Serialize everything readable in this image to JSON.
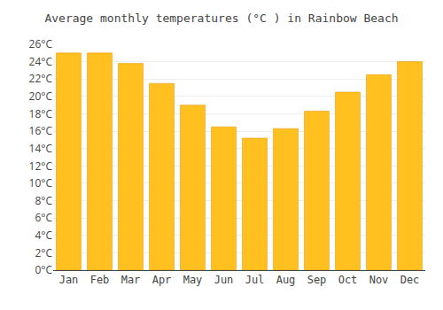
{
  "chart_data": {
    "type": "bar",
    "title": "Average monthly temperatures (°C ) in Rainbow Beach",
    "categories": [
      "Jan",
      "Feb",
      "Mar",
      "Apr",
      "May",
      "Jun",
      "Jul",
      "Aug",
      "Sep",
      "Oct",
      "Nov",
      "Dec"
    ],
    "values": [
      25.0,
      25.0,
      23.8,
      21.5,
      19.0,
      16.5,
      15.2,
      16.3,
      18.3,
      20.5,
      22.5,
      24.0
    ],
    "color": "#FFC020",
    "ylim": [
      0,
      26
    ],
    "yticks": [
      {
        "value": 0,
        "label": "0°C"
      },
      {
        "value": 2,
        "label": "2°C"
      },
      {
        "value": 4,
        "label": "4°C"
      },
      {
        "value": 6,
        "label": "6°C"
      },
      {
        "value": 8,
        "label": "8°C"
      },
      {
        "value": 10,
        "label": "10°C"
      },
      {
        "value": 12,
        "label": "12°C"
      },
      {
        "value": 14,
        "label": "14°C"
      },
      {
        "value": 16,
        "label": "16°C"
      },
      {
        "value": 18,
        "label": "18°C"
      },
      {
        "value": 20,
        "label": "20°C"
      },
      {
        "value": 22,
        "label": "22°C"
      },
      {
        "value": 24,
        "label": "24°C"
      },
      {
        "value": 26,
        "label": "26°C"
      }
    ],
    "grid": true
  }
}
